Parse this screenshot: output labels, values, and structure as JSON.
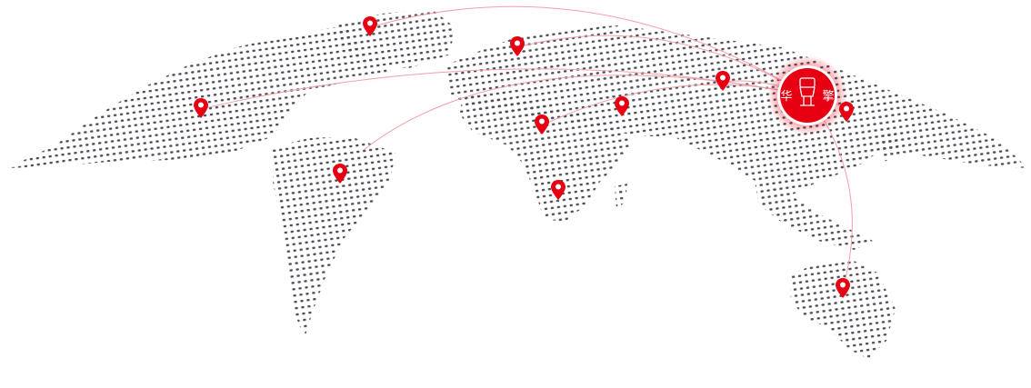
{
  "map": {
    "dot_color": "#4a4d55",
    "accent_color": "#e60012",
    "arc_color": "#f2a0a8",
    "hub": {
      "logo_text": "华擎",
      "logo_icon": "raised-fist-icon"
    },
    "pins": [
      {
        "region": "greenland"
      },
      {
        "region": "europe"
      },
      {
        "region": "north-america"
      },
      {
        "region": "south-america"
      },
      {
        "region": "africa-central"
      },
      {
        "region": "middle-east"
      },
      {
        "region": "africa-south"
      },
      {
        "region": "central-asia"
      },
      {
        "region": "east-asia"
      },
      {
        "region": "australia"
      }
    ]
  }
}
